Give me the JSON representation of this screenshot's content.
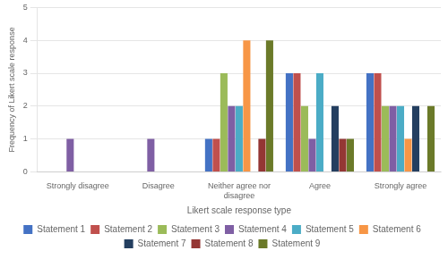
{
  "chart_data": {
    "type": "bar",
    "categories": [
      "Strongly disagree",
      "Disagree",
      "Neither agree nor\ndisagree",
      "Agree",
      "Strongly agree"
    ],
    "series": [
      {
        "name": "Statement 1",
        "color": "#4472C4",
        "values": [
          0,
          0,
          1,
          3,
          3
        ]
      },
      {
        "name": "Statement 2",
        "color": "#C0504D",
        "values": [
          0,
          0,
          1,
          3,
          3
        ]
      },
      {
        "name": "Statement 3",
        "color": "#9BBB59",
        "values": [
          0,
          0,
          3,
          2,
          2
        ]
      },
      {
        "name": "Statement 4",
        "color": "#7F5FA4",
        "values": [
          1,
          1,
          2,
          1,
          2
        ]
      },
      {
        "name": "Statement 5",
        "color": "#4BACC6",
        "values": [
          0,
          0,
          2,
          3,
          2
        ]
      },
      {
        "name": "Statement 6",
        "color": "#F79646",
        "values": [
          0,
          0,
          4,
          0,
          1
        ]
      },
      {
        "name": "Statement 7",
        "color": "#243F60",
        "values": [
          0,
          0,
          0,
          2,
          2
        ]
      },
      {
        "name": "Statement 8",
        "color": "#943634",
        "values": [
          0,
          0,
          1,
          1,
          0
        ]
      },
      {
        "name": "Statement 9",
        "color": "#6B7A29",
        "values": [
          0,
          0,
          4,
          1,
          2
        ]
      }
    ],
    "xlabel": "Likert scale response type",
    "ylabel": "Frequency of Likert scale response",
    "ylim": [
      0,
      5
    ],
    "yticks": [
      0,
      1,
      2,
      3,
      4,
      5
    ],
    "grid": true,
    "legend": "bottom"
  }
}
